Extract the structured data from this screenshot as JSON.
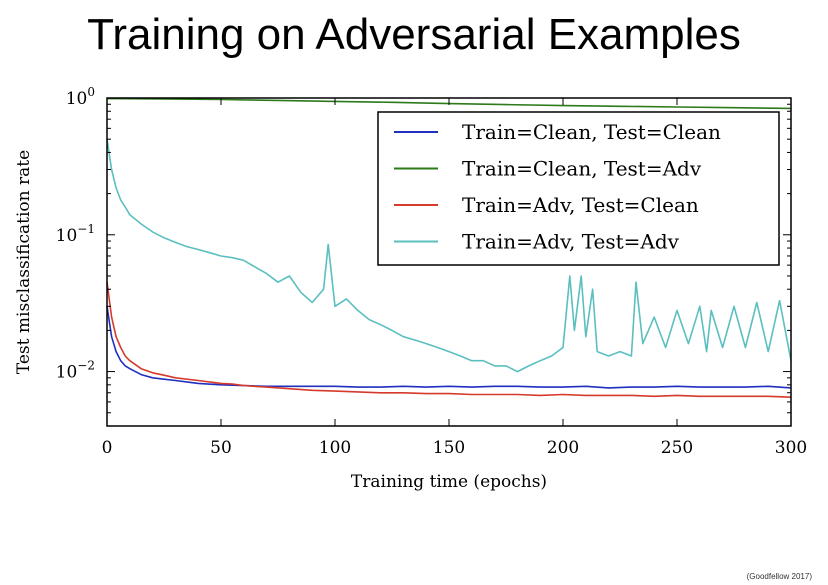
{
  "slide": {
    "title": "Training on Adversarial Examples",
    "credit": "(Goodfellow 2017)"
  },
  "chart_data": {
    "type": "line",
    "title": "",
    "xlabel": "Training time (epochs)",
    "ylabel": "Test misclassification rate",
    "xlim": [
      0,
      300
    ],
    "ylim": [
      0.004,
      1.0
    ],
    "yscale": "log",
    "xticks": [
      0,
      50,
      100,
      150,
      200,
      250,
      300
    ],
    "yticks": [
      {
        "value": 0.01,
        "base": "10",
        "exp": "−2"
      },
      {
        "value": 0.1,
        "base": "10",
        "exp": "−1"
      },
      {
        "value": 1.0,
        "base": "10",
        "exp": "0"
      }
    ],
    "grid": false,
    "legend_position": "top-right",
    "series": [
      {
        "name": "Train=Clean, Test=Clean",
        "color": "#1f2fbf",
        "x": [
          0,
          2,
          4,
          6,
          8,
          10,
          15,
          20,
          25,
          30,
          40,
          50,
          60,
          70,
          80,
          90,
          100,
          110,
          120,
          130,
          140,
          150,
          160,
          170,
          180,
          190,
          200,
          210,
          220,
          230,
          240,
          250,
          260,
          270,
          280,
          290,
          300
        ],
        "y": [
          0.03,
          0.018,
          0.014,
          0.012,
          0.011,
          0.0105,
          0.0095,
          0.009,
          0.0088,
          0.0086,
          0.0082,
          0.008,
          0.0079,
          0.0078,
          0.0078,
          0.0078,
          0.0078,
          0.0077,
          0.0077,
          0.0078,
          0.0077,
          0.0078,
          0.0077,
          0.0078,
          0.0078,
          0.0077,
          0.0077,
          0.0078,
          0.0076,
          0.0077,
          0.0077,
          0.0078,
          0.0077,
          0.0077,
          0.0077,
          0.0078,
          0.0076
        ]
      },
      {
        "name": "Train=Clean, Test=Adv",
        "color": "#2c7a1a",
        "x": [
          0,
          25,
          50,
          75,
          100,
          125,
          150,
          175,
          200,
          225,
          250,
          275,
          300
        ],
        "y": [
          0.99,
          0.985,
          0.975,
          0.96,
          0.945,
          0.93,
          0.91,
          0.895,
          0.88,
          0.87,
          0.86,
          0.85,
          0.84
        ]
      },
      {
        "name": "Train=Adv, Test=Clean",
        "color": "#d63a2a",
        "x": [
          0,
          2,
          4,
          6,
          8,
          10,
          15,
          20,
          25,
          30,
          40,
          50,
          55,
          60,
          70,
          80,
          90,
          100,
          110,
          120,
          130,
          140,
          150,
          160,
          170,
          180,
          190,
          200,
          210,
          220,
          230,
          240,
          250,
          260,
          270,
          280,
          290,
          300
        ],
        "y": [
          0.045,
          0.025,
          0.018,
          0.015,
          0.013,
          0.012,
          0.0105,
          0.0098,
          0.0094,
          0.009,
          0.0086,
          0.0082,
          0.0081,
          0.0079,
          0.0077,
          0.0075,
          0.0073,
          0.0072,
          0.0071,
          0.007,
          0.007,
          0.0069,
          0.0069,
          0.0068,
          0.0068,
          0.0068,
          0.0067,
          0.0068,
          0.0067,
          0.0067,
          0.0067,
          0.0066,
          0.0067,
          0.0066,
          0.0066,
          0.0066,
          0.0066,
          0.0065
        ]
      },
      {
        "name": "Train=Adv, Test=Adv",
        "color": "#5bbfbf",
        "x": [
          0,
          2,
          4,
          6,
          8,
          10,
          15,
          20,
          25,
          30,
          35,
          40,
          45,
          50,
          55,
          60,
          65,
          70,
          75,
          80,
          85,
          90,
          95,
          97,
          100,
          105,
          110,
          115,
          120,
          125,
          130,
          135,
          140,
          145,
          150,
          155,
          160,
          165,
          170,
          175,
          180,
          185,
          190,
          195,
          200,
          203,
          205,
          208,
          210,
          213,
          215,
          220,
          225,
          230,
          232,
          235,
          240,
          245,
          250,
          255,
          260,
          263,
          265,
          270,
          275,
          280,
          285,
          290,
          295,
          300
        ],
        "y": [
          0.5,
          0.3,
          0.22,
          0.18,
          0.16,
          0.14,
          0.12,
          0.105,
          0.095,
          0.088,
          0.082,
          0.078,
          0.074,
          0.07,
          0.068,
          0.065,
          0.058,
          0.052,
          0.045,
          0.05,
          0.038,
          0.032,
          0.04,
          0.085,
          0.03,
          0.034,
          0.028,
          0.024,
          0.022,
          0.02,
          0.018,
          0.017,
          0.016,
          0.015,
          0.014,
          0.013,
          0.012,
          0.012,
          0.011,
          0.011,
          0.01,
          0.011,
          0.012,
          0.013,
          0.015,
          0.05,
          0.02,
          0.05,
          0.018,
          0.04,
          0.014,
          0.013,
          0.014,
          0.013,
          0.045,
          0.016,
          0.025,
          0.015,
          0.028,
          0.016,
          0.03,
          0.014,
          0.028,
          0.015,
          0.03,
          0.015,
          0.032,
          0.014,
          0.033,
          0.012
        ]
      }
    ]
  }
}
